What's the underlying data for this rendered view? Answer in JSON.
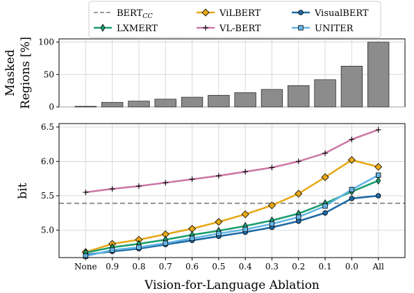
{
  "chart_data": [
    {
      "type": "bar",
      "ylabel_line1": "Masked",
      "ylabel_line2": "Regions [%]",
      "categories": [
        "None",
        "0.9",
        "0.8",
        "0.7",
        "0.6",
        "0.5",
        "0.4",
        "0.3",
        "0.2",
        "0.1",
        "0.0",
        "All"
      ],
      "values": [
        1,
        7,
        9,
        12,
        15,
        18,
        22,
        27,
        33,
        42,
        63,
        100
      ],
      "ylim": [
        0,
        105
      ],
      "yticks": [
        0,
        50,
        100
      ],
      "bar_color": "#8c8c8c",
      "grid": true
    },
    {
      "type": "line",
      "ylabel": "bit",
      "xlabel": "Vision-for-Language Ablation",
      "categories": [
        "None",
        "0.9",
        "0.8",
        "0.7",
        "0.6",
        "0.5",
        "0.4",
        "0.3",
        "0.2",
        "0.1",
        "0.0",
        "All"
      ],
      "ylim": [
        4.6,
        6.55
      ],
      "yticks": [
        5.0,
        5.5,
        6.0,
        6.5
      ],
      "ytick_labels": [
        "5.0",
        "5.5",
        "6.0",
        "6.5"
      ],
      "grid": true,
      "baseline": {
        "name": "BERT",
        "sub": "CC",
        "value": 5.39,
        "color": "#8c8c8c"
      },
      "legend_placement": "top, outside, 3 columns",
      "series": [
        {
          "name": "ViLBERT",
          "color": "#e6a817",
          "marker": "diamond",
          "values": [
            4.68,
            4.8,
            4.86,
            4.94,
            5.02,
            5.12,
            5.23,
            5.36,
            5.53,
            5.77,
            6.02,
            5.92
          ]
        },
        {
          "name": "VisualBERT",
          "color": "#1f6aa5",
          "marker": "circle",
          "values": [
            4.64,
            4.69,
            4.73,
            4.79,
            4.85,
            4.91,
            4.97,
            5.04,
            5.13,
            5.25,
            5.46,
            5.5
          ]
        },
        {
          "name": "LXMERT",
          "color": "#1a9e6e",
          "marker": "thin_diamond",
          "values": [
            4.67,
            4.75,
            4.8,
            4.86,
            4.93,
            4.99,
            5.06,
            5.14,
            5.24,
            5.39,
            5.56,
            5.72
          ]
        },
        {
          "name": "VL-BERT",
          "color": "#cc79a7",
          "marker": "plus",
          "values": [
            5.55,
            5.6,
            5.64,
            5.69,
            5.74,
            5.79,
            5.85,
            5.91,
            6.0,
            6.12,
            6.32,
            6.46
          ]
        },
        {
          "name": "UNITER",
          "color": "#64b5e6",
          "marker": "square",
          "values": [
            4.62,
            4.71,
            4.75,
            4.81,
            4.88,
            4.95,
            5.01,
            5.09,
            5.19,
            5.35,
            5.59,
            5.8
          ]
        }
      ]
    }
  ]
}
